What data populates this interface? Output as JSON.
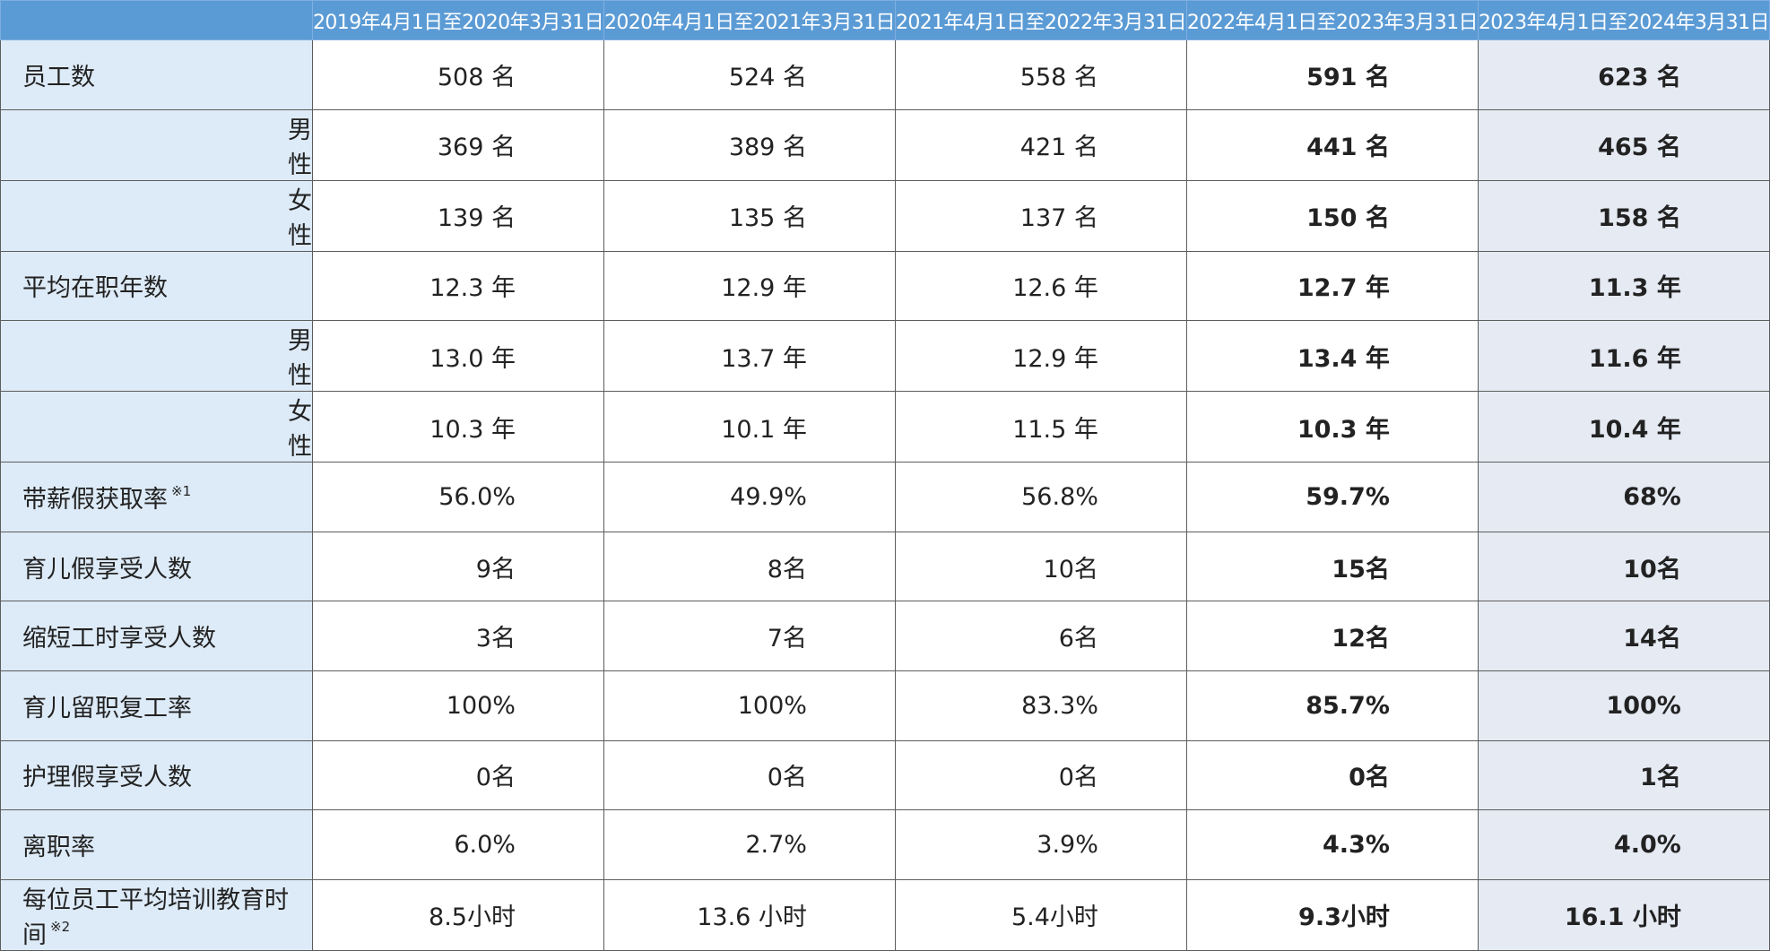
{
  "table": {
    "headers": [
      "2019年4月1日至2020年3月31日",
      "2020年4月1日至2021年3月31日",
      "2021年4月1日至2022年3月31日",
      "2022年4月1日至2023年3月31日",
      "2023年4月1日至2024年3月31日"
    ],
    "rows": [
      {
        "label": "员工数",
        "note": "",
        "sub": false,
        "values": [
          "508 名",
          "524 名",
          "558 名",
          "591 名",
          "623 名"
        ]
      },
      {
        "label": "男性",
        "note": "",
        "sub": true,
        "values": [
          "369 名",
          "389 名",
          "421 名",
          "441 名",
          "465 名"
        ]
      },
      {
        "label": "女性",
        "note": "",
        "sub": true,
        "values": [
          "139 名",
          "135 名",
          "137 名",
          "150 名",
          "158 名"
        ]
      },
      {
        "label": "平均在职年数",
        "note": "",
        "sub": false,
        "values": [
          "12.3 年",
          "12.9 年",
          "12.6 年",
          "12.7 年",
          "11.3 年"
        ]
      },
      {
        "label": "男性",
        "note": "",
        "sub": true,
        "values": [
          "13.0 年",
          "13.7 年",
          "12.9 年",
          "13.4 年",
          "11.6 年"
        ]
      },
      {
        "label": "女性",
        "note": "",
        "sub": true,
        "values": [
          "10.3 年",
          "10.1 年",
          "11.5 年",
          "10.3 年",
          "10.4 年"
        ]
      },
      {
        "label": "带薪假获取率",
        "note": "※1",
        "sub": false,
        "values": [
          "56.0%",
          "49.9%",
          "56.8%",
          "59.7%",
          "68%"
        ]
      },
      {
        "label": "育儿假享受人数",
        "note": "",
        "sub": false,
        "values": [
          "9名",
          "8名",
          "10名",
          "15名",
          "10名"
        ]
      },
      {
        "label": "缩短工时享受人数",
        "note": "",
        "sub": false,
        "values": [
          "3名",
          "7名",
          "6名",
          "12名",
          "14名"
        ]
      },
      {
        "label": "育儿留职复工率",
        "note": "",
        "sub": false,
        "values": [
          "100%",
          "100%",
          "83.3%",
          "85.7%",
          "100%"
        ]
      },
      {
        "label": "护理假享受人数",
        "note": "",
        "sub": false,
        "values": [
          "0名",
          "0名",
          "0名",
          "0名",
          "1名"
        ]
      },
      {
        "label": "离职率",
        "note": "",
        "sub": false,
        "values": [
          "6.0%",
          "2.7%",
          "3.9%",
          "4.3%",
          "4.0%"
        ]
      },
      {
        "label": "每位员工平均培训教育时间",
        "note": "※2",
        "sub": false,
        "values": [
          "8.5小时",
          "13.6 小时",
          "5.4小时",
          "9.3小时",
          "16.1 小时"
        ]
      }
    ]
  },
  "colors": {
    "header_bg": "#5b9bd5",
    "label_bg": "#ddeaf7",
    "last_col_bg": "#e5eaf3",
    "border": "#5c5c5c"
  }
}
